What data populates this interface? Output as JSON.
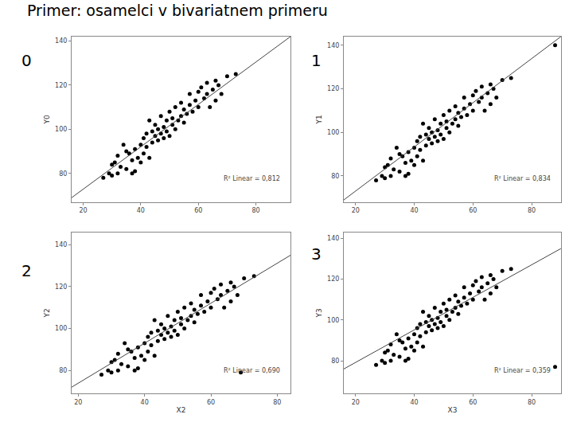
{
  "title": "Primer: osamelci v bivariatnem primeru",
  "chart_data": [
    {
      "type": "scatter",
      "panel_label": "0",
      "y_label": "Y0",
      "annotation": "R² Linear = 0,812",
      "xlim": [
        16,
        92
      ],
      "ylim": [
        67,
        142
      ],
      "xticks": [
        20,
        40,
        60,
        80
      ],
      "yticks": [
        80,
        100,
        120,
        140
      ],
      "grid": false,
      "series": [
        {
          "type": "scatter",
          "marker": "circle",
          "color": "#000000",
          "x": [
            27,
            29,
            30,
            30,
            31,
            32,
            32,
            33,
            34,
            35,
            35,
            36,
            37,
            37,
            38,
            38,
            39,
            40,
            40,
            41,
            41,
            42,
            42,
            43,
            43,
            44,
            44,
            45,
            45,
            46,
            46,
            47,
            47,
            48,
            48,
            49,
            49,
            50,
            50,
            51,
            51,
            52,
            52,
            53,
            54,
            54,
            55,
            55,
            56,
            57,
            57,
            58,
            59,
            60,
            60,
            61,
            62,
            63,
            63,
            64,
            65,
            66,
            66,
            67,
            68,
            70,
            73
          ],
          "values": [
            78,
            80,
            79,
            84,
            85,
            88,
            80,
            83,
            93,
            82,
            90,
            89,
            86,
            80,
            81,
            91,
            87,
            85,
            93,
            96,
            89,
            98,
            92,
            87,
            104,
            94,
            99,
            97,
            102,
            95,
            100,
            98,
            106,
            96,
            101,
            104,
            99,
            97,
            108,
            102,
            105,
            100,
            110,
            104,
            106,
            112,
            103,
            109,
            107,
            111,
            116,
            108,
            113,
            117,
            110,
            119,
            114,
            116,
            121,
            110,
            118,
            122,
            113,
            120,
            116,
            124,
            125
          ]
        },
        {
          "type": "line",
          "line_style": "solid",
          "color": "#444444",
          "x": [
            16,
            92
          ],
          "values": [
            69,
            142
          ]
        }
      ]
    },
    {
      "type": "scatter",
      "panel_label": "1",
      "y_label": "Y1",
      "annotation": "R² Linear = 0,834",
      "xlim": [
        16,
        90
      ],
      "ylim": [
        68,
        144
      ],
      "xticks": [
        20,
        40,
        60,
        80
      ],
      "yticks": [
        80,
        100,
        120,
        140
      ],
      "grid": false,
      "series": [
        {
          "type": "scatter",
          "marker": "circle",
          "color": "#000000",
          "x": [
            27,
            29,
            30,
            30,
            31,
            32,
            32,
            33,
            34,
            35,
            35,
            36,
            37,
            37,
            38,
            38,
            39,
            40,
            40,
            41,
            41,
            42,
            42,
            43,
            43,
            44,
            44,
            45,
            45,
            46,
            46,
            47,
            47,
            48,
            48,
            49,
            49,
            50,
            50,
            51,
            51,
            52,
            52,
            53,
            54,
            54,
            55,
            55,
            56,
            57,
            57,
            58,
            59,
            60,
            60,
            61,
            62,
            63,
            63,
            64,
            65,
            66,
            66,
            67,
            68,
            70,
            73,
            88
          ],
          "values": [
            78,
            80,
            79,
            84,
            85,
            88,
            80,
            83,
            93,
            82,
            90,
            89,
            86,
            80,
            81,
            91,
            87,
            85,
            93,
            96,
            89,
            98,
            92,
            87,
            104,
            94,
            99,
            97,
            102,
            95,
            100,
            98,
            106,
            96,
            101,
            104,
            99,
            97,
            108,
            102,
            105,
            100,
            110,
            104,
            106,
            112,
            103,
            109,
            107,
            111,
            116,
            108,
            113,
            117,
            110,
            119,
            114,
            116,
            121,
            110,
            118,
            122,
            113,
            120,
            116,
            124,
            125,
            140
          ]
        },
        {
          "type": "line",
          "line_style": "solid",
          "color": "#444444",
          "x": [
            16,
            90
          ],
          "values": [
            69,
            144
          ]
        }
      ]
    },
    {
      "type": "scatter",
      "panel_label": "2",
      "x_label": "X2",
      "y_label": "Y2",
      "annotation": "R² Linear = 0,690",
      "xlim": [
        18,
        84
      ],
      "ylim": [
        69,
        146
      ],
      "xticks": [
        20,
        40,
        60,
        80
      ],
      "yticks": [
        80,
        100,
        120,
        140
      ],
      "grid": false,
      "series": [
        {
          "type": "scatter",
          "marker": "circle",
          "color": "#000000",
          "x": [
            27,
            29,
            30,
            30,
            31,
            32,
            32,
            33,
            34,
            35,
            35,
            36,
            37,
            37,
            38,
            38,
            39,
            40,
            40,
            41,
            41,
            42,
            42,
            43,
            43,
            44,
            44,
            45,
            45,
            46,
            46,
            47,
            47,
            48,
            48,
            49,
            49,
            50,
            50,
            51,
            51,
            52,
            52,
            53,
            54,
            54,
            55,
            55,
            56,
            57,
            57,
            58,
            59,
            60,
            60,
            61,
            62,
            63,
            63,
            64,
            65,
            66,
            66,
            67,
            68,
            70,
            73,
            69
          ],
          "values": [
            78,
            80,
            79,
            84,
            85,
            88,
            80,
            83,
            93,
            82,
            90,
            89,
            86,
            80,
            81,
            91,
            87,
            85,
            93,
            96,
            89,
            98,
            92,
            87,
            104,
            94,
            99,
            97,
            102,
            95,
            100,
            98,
            106,
            96,
            101,
            104,
            99,
            97,
            108,
            102,
            105,
            100,
            110,
            104,
            106,
            112,
            103,
            109,
            107,
            111,
            116,
            108,
            113,
            117,
            110,
            119,
            114,
            116,
            121,
            110,
            118,
            122,
            113,
            120,
            116,
            124,
            125,
            79
          ]
        },
        {
          "type": "line",
          "line_style": "solid",
          "color": "#444444",
          "x": [
            18,
            84
          ],
          "values": [
            72,
            135
          ]
        }
      ]
    },
    {
      "type": "scatter",
      "panel_label": "3",
      "x_label": "X3",
      "y_label": "Y3",
      "annotation": "R² Linear = 0,359",
      "xlim": [
        16,
        90
      ],
      "ylim": [
        64,
        143
      ],
      "xticks": [
        20,
        40,
        60,
        80
      ],
      "yticks": [
        80,
        100,
        120,
        140
      ],
      "grid": false,
      "series": [
        {
          "type": "scatter",
          "marker": "circle",
          "color": "#000000",
          "x": [
            27,
            29,
            30,
            30,
            31,
            32,
            32,
            33,
            34,
            35,
            35,
            36,
            37,
            37,
            38,
            38,
            39,
            40,
            40,
            41,
            41,
            42,
            42,
            43,
            43,
            44,
            44,
            45,
            45,
            46,
            46,
            47,
            47,
            48,
            48,
            49,
            49,
            50,
            50,
            51,
            51,
            52,
            52,
            53,
            54,
            54,
            55,
            55,
            56,
            57,
            57,
            58,
            59,
            60,
            60,
            61,
            62,
            63,
            63,
            64,
            65,
            66,
            66,
            67,
            68,
            70,
            73,
            88
          ],
          "values": [
            78,
            80,
            79,
            84,
            85,
            88,
            80,
            83,
            93,
            82,
            90,
            89,
            86,
            80,
            81,
            91,
            87,
            85,
            93,
            96,
            89,
            98,
            92,
            87,
            104,
            94,
            99,
            97,
            102,
            95,
            100,
            98,
            106,
            96,
            101,
            104,
            99,
            97,
            108,
            102,
            105,
            100,
            110,
            104,
            106,
            112,
            103,
            109,
            107,
            111,
            116,
            108,
            113,
            117,
            110,
            119,
            114,
            116,
            121,
            110,
            118,
            122,
            113,
            120,
            116,
            124,
            125,
            77
          ]
        },
        {
          "type": "line",
          "line_style": "solid",
          "color": "#444444",
          "x": [
            16,
            90
          ],
          "values": [
            76,
            135
          ]
        }
      ]
    }
  ]
}
